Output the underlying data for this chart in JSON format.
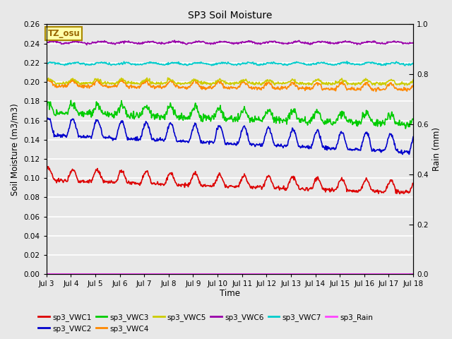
{
  "title": "SP3 Soil Moisture",
  "xlabel": "Time",
  "ylabel_left": "Soil Moisture (m3/m3)",
  "ylabel_right": "Rain (mm)",
  "xlim_days": [
    3,
    18
  ],
  "ylim_left": [
    0.0,
    0.26
  ],
  "ylim_right": [
    0.0,
    1.0
  ],
  "x_ticks": [
    3,
    4,
    5,
    6,
    7,
    8,
    9,
    10,
    11,
    12,
    13,
    14,
    15,
    16,
    17,
    18
  ],
  "x_tick_labels": [
    "Jul 3",
    "Jul 4",
    "Jul 5",
    "Jul 6",
    "Jul 7",
    "Jul 8",
    "Jul 9",
    "Jul 10",
    "Jul 11",
    "Jul 12",
    "Jul 13",
    "Jul 14",
    "Jul 15",
    "Jul 16",
    "Jul 17",
    "Jul 18"
  ],
  "y_ticks_left": [
    0.0,
    0.02,
    0.04,
    0.06,
    0.08,
    0.1,
    0.12,
    0.14,
    0.16,
    0.18,
    0.2,
    0.22,
    0.24,
    0.26
  ],
  "y_ticks_right": [
    0.0,
    0.2,
    0.4,
    0.6,
    0.8,
    1.0
  ],
  "bg_color": "#e8e8e8",
  "grid_color": "white",
  "series_colors": {
    "sp3_VWC1": "#dd0000",
    "sp3_VWC2": "#0000cc",
    "sp3_VWC3": "#00cc00",
    "sp3_VWC4": "#ff8800",
    "sp3_VWC5": "#cccc00",
    "sp3_VWC6": "#9900aa",
    "sp3_VWC7": "#00cccc",
    "sp3_Rain": "#ff44ff"
  },
  "annotation_text": "TZ_osu",
  "annotation_fgcolor": "#996600",
  "annotation_bgcolor": "#ffffaa",
  "annotation_edgecolor": "#aa8800"
}
